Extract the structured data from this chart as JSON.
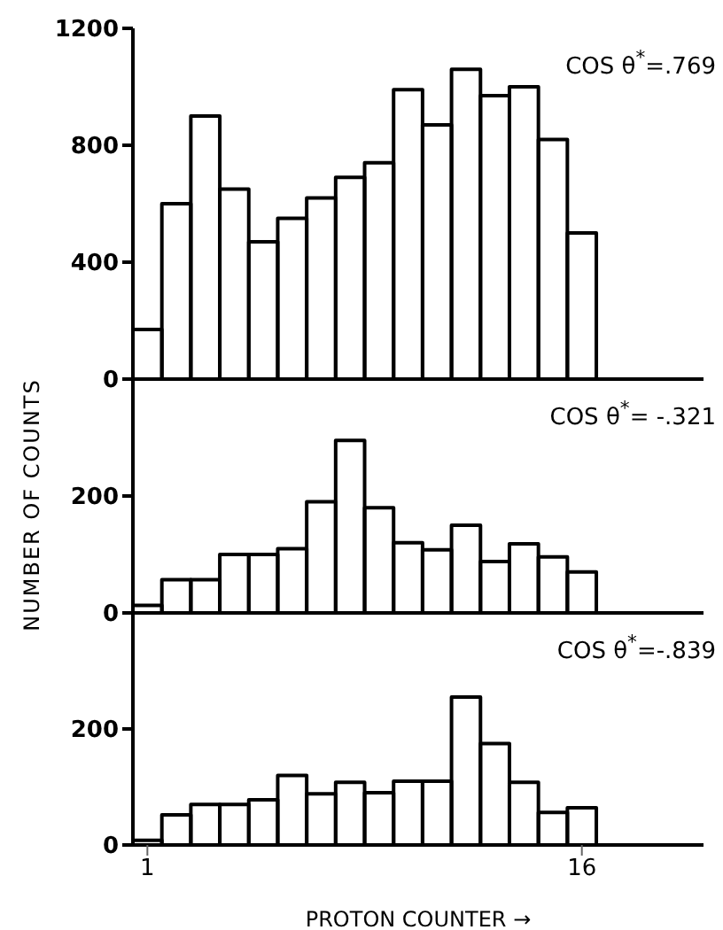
{
  "chart_data": [
    {
      "type": "histogram",
      "color": "#000000",
      "bins": [
        0.5,
        1.5,
        2.5,
        3.5,
        4.5,
        5.5,
        6.5,
        7.5,
        8.5,
        9.5,
        10.5,
        11.5,
        12.5,
        13.5,
        14.5,
        15.5,
        16.5
      ],
      "values": [
        170,
        600,
        900,
        650,
        470,
        550,
        620,
        690,
        740,
        990,
        870,
        1060,
        970,
        1000,
        820,
        500
      ],
      "xlim": [
        0.5,
        20.2
      ],
      "ylim": [
        0,
        1200
      ],
      "yticks": [
        0,
        400,
        800,
        1200
      ],
      "tick_labels": "y",
      "annotations": [
        "COS θ$^{*}$=.769"
      ]
    },
    {
      "type": "histogram",
      "color": "#000000",
      "bins": [
        0.5,
        1.5,
        2.5,
        3.5,
        4.5,
        5.5,
        6.5,
        7.5,
        8.5,
        9.5,
        10.5,
        11.5,
        12.5,
        13.5,
        14.5,
        15.5,
        16.5
      ],
      "values": [
        13,
        57,
        57,
        100,
        100,
        110,
        190,
        295,
        180,
        120,
        108,
        150,
        88,
        118,
        96,
        70
      ],
      "xlim": [
        0.5,
        20.2
      ],
      "ylim": [
        0,
        400
      ],
      "yticks": [
        0,
        200
      ],
      "tick_labels": "y",
      "ylabel": "NUMBER OF COUNTS",
      "annotations": [
        "COS θ$^{*}$= -.321"
      ]
    },
    {
      "type": "histogram",
      "color": "#000000",
      "bins": [
        0.5,
        1.5,
        2.5,
        3.5,
        4.5,
        5.5,
        6.5,
        7.5,
        8.5,
        9.5,
        10.5,
        11.5,
        12.5,
        13.5,
        14.5,
        15.5,
        16.5
      ],
      "values": [
        8,
        52,
        70,
        70,
        78,
        120,
        88,
        108,
        90,
        110,
        110,
        255,
        175,
        108,
        56,
        64
      ],
      "xlim": [
        0.5,
        20.2
      ],
      "xticks": [
        1,
        16
      ],
      "ylim": [
        0,
        400
      ],
      "yticks": [
        0,
        200
      ],
      "xlabel": "PROTON COUNTER →",
      "annotations": [
        "COS θ$^{*}$=-.839"
      ]
    }
  ]
}
